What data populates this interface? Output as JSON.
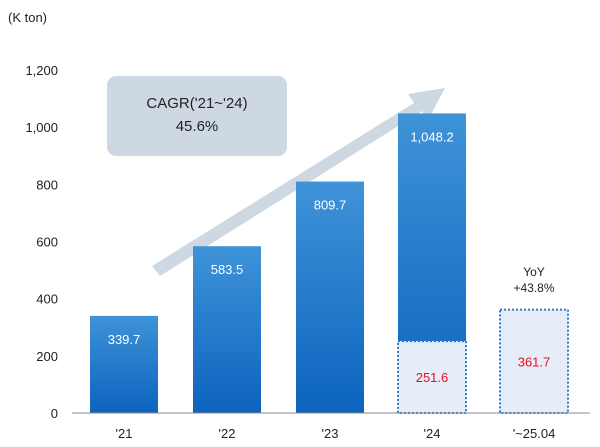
{
  "chart_data": {
    "type": "bar",
    "unit_label": "(K ton)",
    "categories": [
      "'21",
      "'22",
      "'23",
      "'24",
      "'~25.04"
    ],
    "series": [
      {
        "values": [
          339.7,
          583.5,
          809.7,
          1048.2,
          null
        ],
        "labels": [
          "339.7",
          "583.5",
          "809.7",
          "1,048.2",
          ""
        ]
      },
      {
        "values": [
          null,
          null,
          null,
          251.6,
          361.7
        ],
        "labels": [
          "",
          "",
          "",
          "251.6",
          "361.7"
        ]
      }
    ],
    "ylim": [
      0,
      1200
    ],
    "yticks": [
      0,
      200,
      400,
      600,
      800,
      1000,
      1200
    ],
    "ytick_labels": [
      "0",
      "200",
      "400",
      "600",
      "800",
      "1,000",
      "1,200"
    ],
    "annotations": {
      "cagr_line1": "CAGR('21~'24)",
      "cagr_line2": "45.6%",
      "yoy_line1": "YoY",
      "yoy_line2": "+43.8%"
    },
    "colors": {
      "bar_top": "#3f93d8",
      "bar_bottom": "#0c63bd",
      "box_fill": "#e6ecf8",
      "box_border": "#2a7ad0",
      "highlight_text": "#e8101a",
      "arrow": "#cdd8e2",
      "cagr_box": "#cdd8e2"
    }
  }
}
